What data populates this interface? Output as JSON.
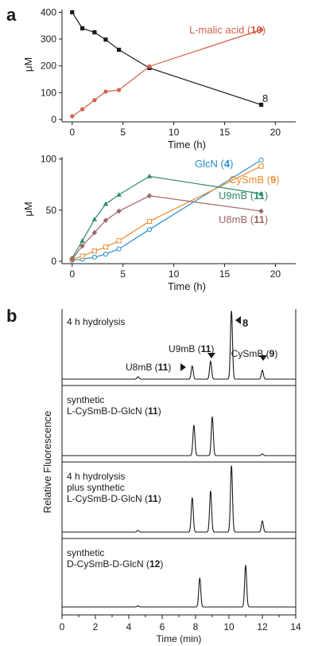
{
  "panel_labels": {
    "a": "a",
    "b": "b"
  },
  "colors": {
    "axis": "#1a1a1a",
    "substrate": "#1a1a1a",
    "malic": "#d4604a",
    "glcn": "#2a8fcb",
    "cysmb": "#ec8b2f",
    "u9mb": "#2e8b6b",
    "u8mb": "#9e6868"
  },
  "chart_data": [
    {
      "id": "a_top",
      "type": "line",
      "xlabel": "Time (h)",
      "ylabel": "μM",
      "xlim": [
        -1,
        22
      ],
      "ylim": [
        0,
        410
      ],
      "xticks": [
        0,
        5,
        10,
        15,
        20
      ],
      "yticks": [
        0,
        100,
        200,
        300,
        400
      ],
      "series": [
        {
          "name": "8",
          "label_parts": [
            {
              "text": "8",
              "bold": false
            }
          ],
          "color_key": "substrate",
          "marker": "square-filled",
          "points": [
            [
              0,
              400
            ],
            [
              1,
              340
            ],
            [
              2.2,
              325
            ],
            [
              3.3,
              298
            ],
            [
              4.6,
              260
            ],
            [
              7.6,
              192
            ],
            [
              18.6,
              55
            ]
          ]
        },
        {
          "name": "L-malic acid (10)",
          "label_parts": [
            {
              "text": "L-malic acid (",
              "bold": false
            },
            {
              "text": "10",
              "bold": true
            },
            {
              "text": ")",
              "bold": false
            }
          ],
          "color_key": "malic",
          "marker": "circle-filled",
          "points": [
            [
              0,
              12
            ],
            [
              1,
              38
            ],
            [
              2.2,
              72
            ],
            [
              3.3,
              104
            ],
            [
              4.6,
              110
            ],
            [
              7.6,
              198
            ],
            [
              18.6,
              335
            ]
          ]
        }
      ]
    },
    {
      "id": "a_bottom",
      "type": "line",
      "xlabel": "Time (h)",
      "ylabel": "μM",
      "xlim": [
        -1,
        22
      ],
      "ylim": [
        0,
        102
      ],
      "xticks": [
        0,
        5,
        10,
        15,
        20
      ],
      "yticks": [
        0,
        50,
        100
      ],
      "series": [
        {
          "name": "GlcN (4)",
          "label_parts": [
            {
              "text": "GlcN (",
              "bold": false
            },
            {
              "text": "4",
              "bold": true
            },
            {
              "text": ")",
              "bold": false
            }
          ],
          "color_key": "glcn",
          "marker": "circle-open",
          "points": [
            [
              0,
              1
            ],
            [
              1,
              2
            ],
            [
              2.2,
              4
            ],
            [
              3.3,
              7
            ],
            [
              4.6,
              12
            ],
            [
              7.6,
              31
            ],
            [
              18.6,
              99
            ]
          ]
        },
        {
          "name": "CySmB (9)",
          "label_parts": [
            {
              "text": "CySmB (",
              "bold": false
            },
            {
              "text": "9",
              "bold": true
            },
            {
              "text": ")",
              "bold": false
            }
          ],
          "color_key": "cysmb",
          "marker": "square-open",
          "points": [
            [
              0,
              2
            ],
            [
              1,
              5
            ],
            [
              2.2,
              10
            ],
            [
              3.3,
              14
            ],
            [
              4.6,
              20
            ],
            [
              7.6,
              39
            ],
            [
              18.6,
              93
            ]
          ]
        },
        {
          "name": "U9mB (11)",
          "label_parts": [
            {
              "text": "U9mB (",
              "bold": false
            },
            {
              "text": "11",
              "bold": true
            },
            {
              "text": ")",
              "bold": false
            }
          ],
          "color_key": "u9mb",
          "marker": "triangle-filled",
          "points": [
            [
              0,
              3
            ],
            [
              1,
              20
            ],
            [
              2.2,
              41
            ],
            [
              3.3,
              56
            ],
            [
              4.6,
              65
            ],
            [
              7.6,
              83
            ],
            [
              18.6,
              66
            ]
          ]
        },
        {
          "name": "U8mB (11)",
          "label_parts": [
            {
              "text": "U8mB (",
              "bold": false
            },
            {
              "text": "11",
              "bold": true
            },
            {
              "text": ")",
              "bold": false
            }
          ],
          "color_key": "u8mb",
          "marker": "diamond-filled",
          "points": [
            [
              0,
              2
            ],
            [
              1,
              15
            ],
            [
              2.2,
              28
            ],
            [
              3.3,
              40
            ],
            [
              4.6,
              49
            ],
            [
              7.6,
              64
            ],
            [
              18.6,
              49
            ]
          ]
        }
      ]
    },
    {
      "id": "b",
      "type": "line",
      "xlabel": "Time (min)",
      "ylabel": "Relative Fluorescence",
      "xlim": [
        0,
        14
      ],
      "xticks": [
        0,
        2,
        4,
        6,
        8,
        10,
        12,
        14
      ],
      "traces": [
        {
          "label_lines": [
            [
              {
                "text": "4 h hydrolysis",
                "bold": false
              }
            ]
          ],
          "peaks": [
            [
              4.55,
              0.04
            ],
            [
              7.8,
              0.22
            ],
            [
              8.9,
              0.3
            ],
            [
              10.15,
              1.15
            ],
            [
              12.0,
              0.15
            ]
          ],
          "annotations": [
            {
              "x": 7.8,
              "parts": [
                {
                  "text": "U8mB (",
                  "bold": false
                },
                {
                  "text": "11",
                  "bold": true
                },
                {
                  "text": ")",
                  "bold": false
                }
              ]
            },
            {
              "x": 8.9,
              "parts": [
                {
                  "text": "U9mB (",
                  "bold": false
                },
                {
                  "text": "11",
                  "bold": true
                },
                {
                  "text": ")",
                  "bold": false
                }
              ]
            },
            {
              "x": 10.15,
              "parts": [
                {
                  "text": "8",
                  "bold": true
                }
              ]
            },
            {
              "x": 12.0,
              "parts": [
                {
                  "text": "CySmB (",
                  "bold": false
                },
                {
                  "text": "9",
                  "bold": true
                },
                {
                  "text": ")",
                  "bold": false
                }
              ]
            }
          ]
        },
        {
          "label_lines": [
            [
              {
                "text": "synthetic",
                "bold": false
              }
            ],
            [
              {
                "text": "L-CySmB-D-GlcN (",
                "bold": false
              },
              {
                "text": "11",
                "bold": true
              },
              {
                "text": ")",
                "bold": false
              }
            ]
          ],
          "peaks": [
            [
              7.9,
              0.55
            ],
            [
              9.0,
              0.7
            ],
            [
              12.0,
              0.03
            ]
          ],
          "annotations": []
        },
        {
          "label_lines": [
            [
              {
                "text": "4 h hydrolysis",
                "bold": false
              }
            ],
            [
              {
                "text": "plus synthetic",
                "bold": false
              }
            ],
            [
              {
                "text": "L-CySmB-D-GlcN (",
                "bold": false
              },
              {
                "text": "11",
                "bold": true
              },
              {
                "text": ")",
                "bold": false
              }
            ]
          ],
          "peaks": [
            [
              4.55,
              0.03
            ],
            [
              7.8,
              0.62
            ],
            [
              8.9,
              0.74
            ],
            [
              10.15,
              1.2
            ],
            [
              12.0,
              0.2
            ]
          ],
          "annotations": []
        },
        {
          "label_lines": [
            [
              {
                "text": "synthetic",
                "bold": false
              }
            ],
            [
              {
                "text": "D-CySmB-D-GlcN (",
                "bold": false
              },
              {
                "text": "12",
                "bold": true
              },
              {
                "text": ")",
                "bold": false
              }
            ]
          ],
          "peaks": [
            [
              4.55,
              0.02
            ],
            [
              8.25,
              0.52
            ],
            [
              11.0,
              0.75
            ]
          ],
          "annotations": []
        }
      ]
    }
  ]
}
